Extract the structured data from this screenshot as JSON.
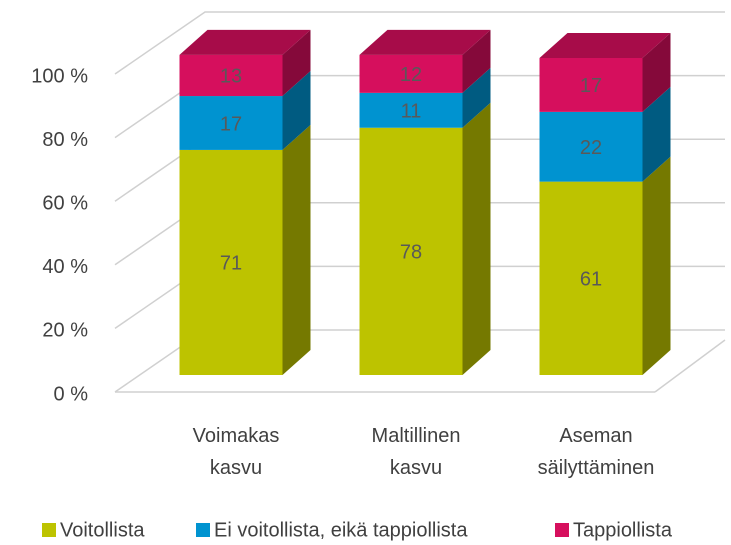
{
  "chart_data": {
    "type": "bar3d_stacked",
    "categories": [
      "Voimakas kasvu",
      "Maltillinen kasvu",
      "Aseman säilyttäminen"
    ],
    "series": [
      {
        "name": "Voitollista",
        "color": "#bdc300",
        "values": [
          71,
          78,
          61
        ]
      },
      {
        "name": "Ei voitollista, eikä tappiollista",
        "color": "#0093d0",
        "values": [
          17,
          11,
          22
        ]
      },
      {
        "name": "Tappiollista",
        "color": "#d60f5d",
        "values": [
          13,
          12,
          17
        ]
      }
    ],
    "ylim": [
      0,
      100
    ],
    "yticks": [
      {
        "value": 0,
        "label": "0 %"
      },
      {
        "value": 20,
        "label": "20 %"
      },
      {
        "value": 40,
        "label": "40 %"
      },
      {
        "value": 60,
        "label": "60 %"
      },
      {
        "value": 80,
        "label": "80 %"
      },
      {
        "value": 100,
        "label": "100 %"
      }
    ],
    "grid": true
  }
}
